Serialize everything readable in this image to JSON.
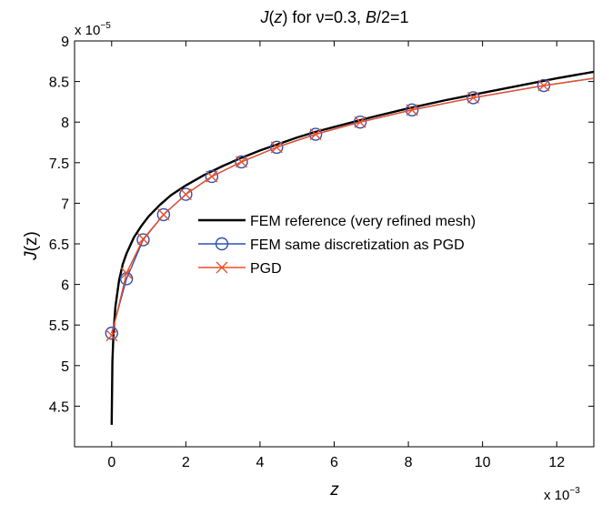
{
  "chart_data": {
    "type": "line",
    "title": {
      "J": "J",
      "z": "z",
      "pre": "(",
      "mid": ") for ν=0.3, ",
      "B": "B",
      "post": "/2=1"
    },
    "xlabel": "z",
    "ylabel": {
      "J": "J",
      "rest": "(z)"
    },
    "x_exponent": {
      "base": "x 10",
      "exp": "−3"
    },
    "y_exponent": {
      "base": "x 10",
      "exp": "−5"
    },
    "xlim": [
      -1,
      13
    ],
    "ylim": [
      4,
      9
    ],
    "xticks": [
      0,
      2,
      4,
      6,
      8,
      10,
      12
    ],
    "xtick_labels": [
      "0",
      "2",
      "4",
      "6",
      "8",
      "10",
      "12"
    ],
    "yticks": [
      4.5,
      5,
      5.5,
      6,
      6.5,
      7,
      7.5,
      8,
      8.5,
      9
    ],
    "ytick_labels": [
      "4.5",
      "5",
      "5.5",
      "6",
      "6.5",
      "7",
      "7.5",
      "8",
      "8.5",
      "9"
    ],
    "grid": false,
    "legend_position": "center-right",
    "series": [
      {
        "name": "FEM reference (very refined mesh)",
        "color": "#000000",
        "marker": "none",
        "x": [
          0.0,
          0.02,
          0.05,
          0.1,
          0.2,
          0.3,
          0.4,
          0.6,
          0.8,
          1.0,
          1.3,
          1.6,
          2.0,
          2.5,
          3.0,
          3.5,
          4.0,
          4.5,
          5.0,
          5.5,
          6.0,
          7.0,
          8.0,
          9.0,
          10.0,
          11.0,
          12.0,
          13.0
        ],
        "y": [
          4.27,
          5.05,
          5.4,
          5.72,
          6.05,
          6.25,
          6.38,
          6.58,
          6.72,
          6.84,
          6.98,
          7.1,
          7.22,
          7.35,
          7.46,
          7.56,
          7.65,
          7.73,
          7.81,
          7.88,
          7.94,
          8.06,
          8.17,
          8.27,
          8.36,
          8.45,
          8.54,
          8.62
        ]
      },
      {
        "name": "FEM same discretization as PGD",
        "color": "#2f4fb0",
        "marker": "circle",
        "x": [
          0.0,
          0.4,
          0.85,
          1.4,
          2.0,
          2.7,
          3.5,
          4.45,
          5.5,
          6.7,
          8.1,
          9.75,
          11.65,
          13.0
        ],
        "y": [
          5.4,
          6.07,
          6.55,
          6.86,
          7.11,
          7.33,
          7.51,
          7.69,
          7.85,
          8.0,
          8.15,
          8.3,
          8.45,
          8.54
        ]
      },
      {
        "name": "PGD",
        "color": "#e8502a",
        "marker": "x",
        "x": [
          0.0,
          0.4,
          0.85,
          1.4,
          2.0,
          2.7,
          3.5,
          4.45,
          5.5,
          6.7,
          8.1,
          9.75,
          11.65,
          13.0
        ],
        "y": [
          5.37,
          6.14,
          6.56,
          6.86,
          7.11,
          7.33,
          7.51,
          7.69,
          7.85,
          8.0,
          8.15,
          8.3,
          8.45,
          8.54
        ]
      }
    ]
  }
}
